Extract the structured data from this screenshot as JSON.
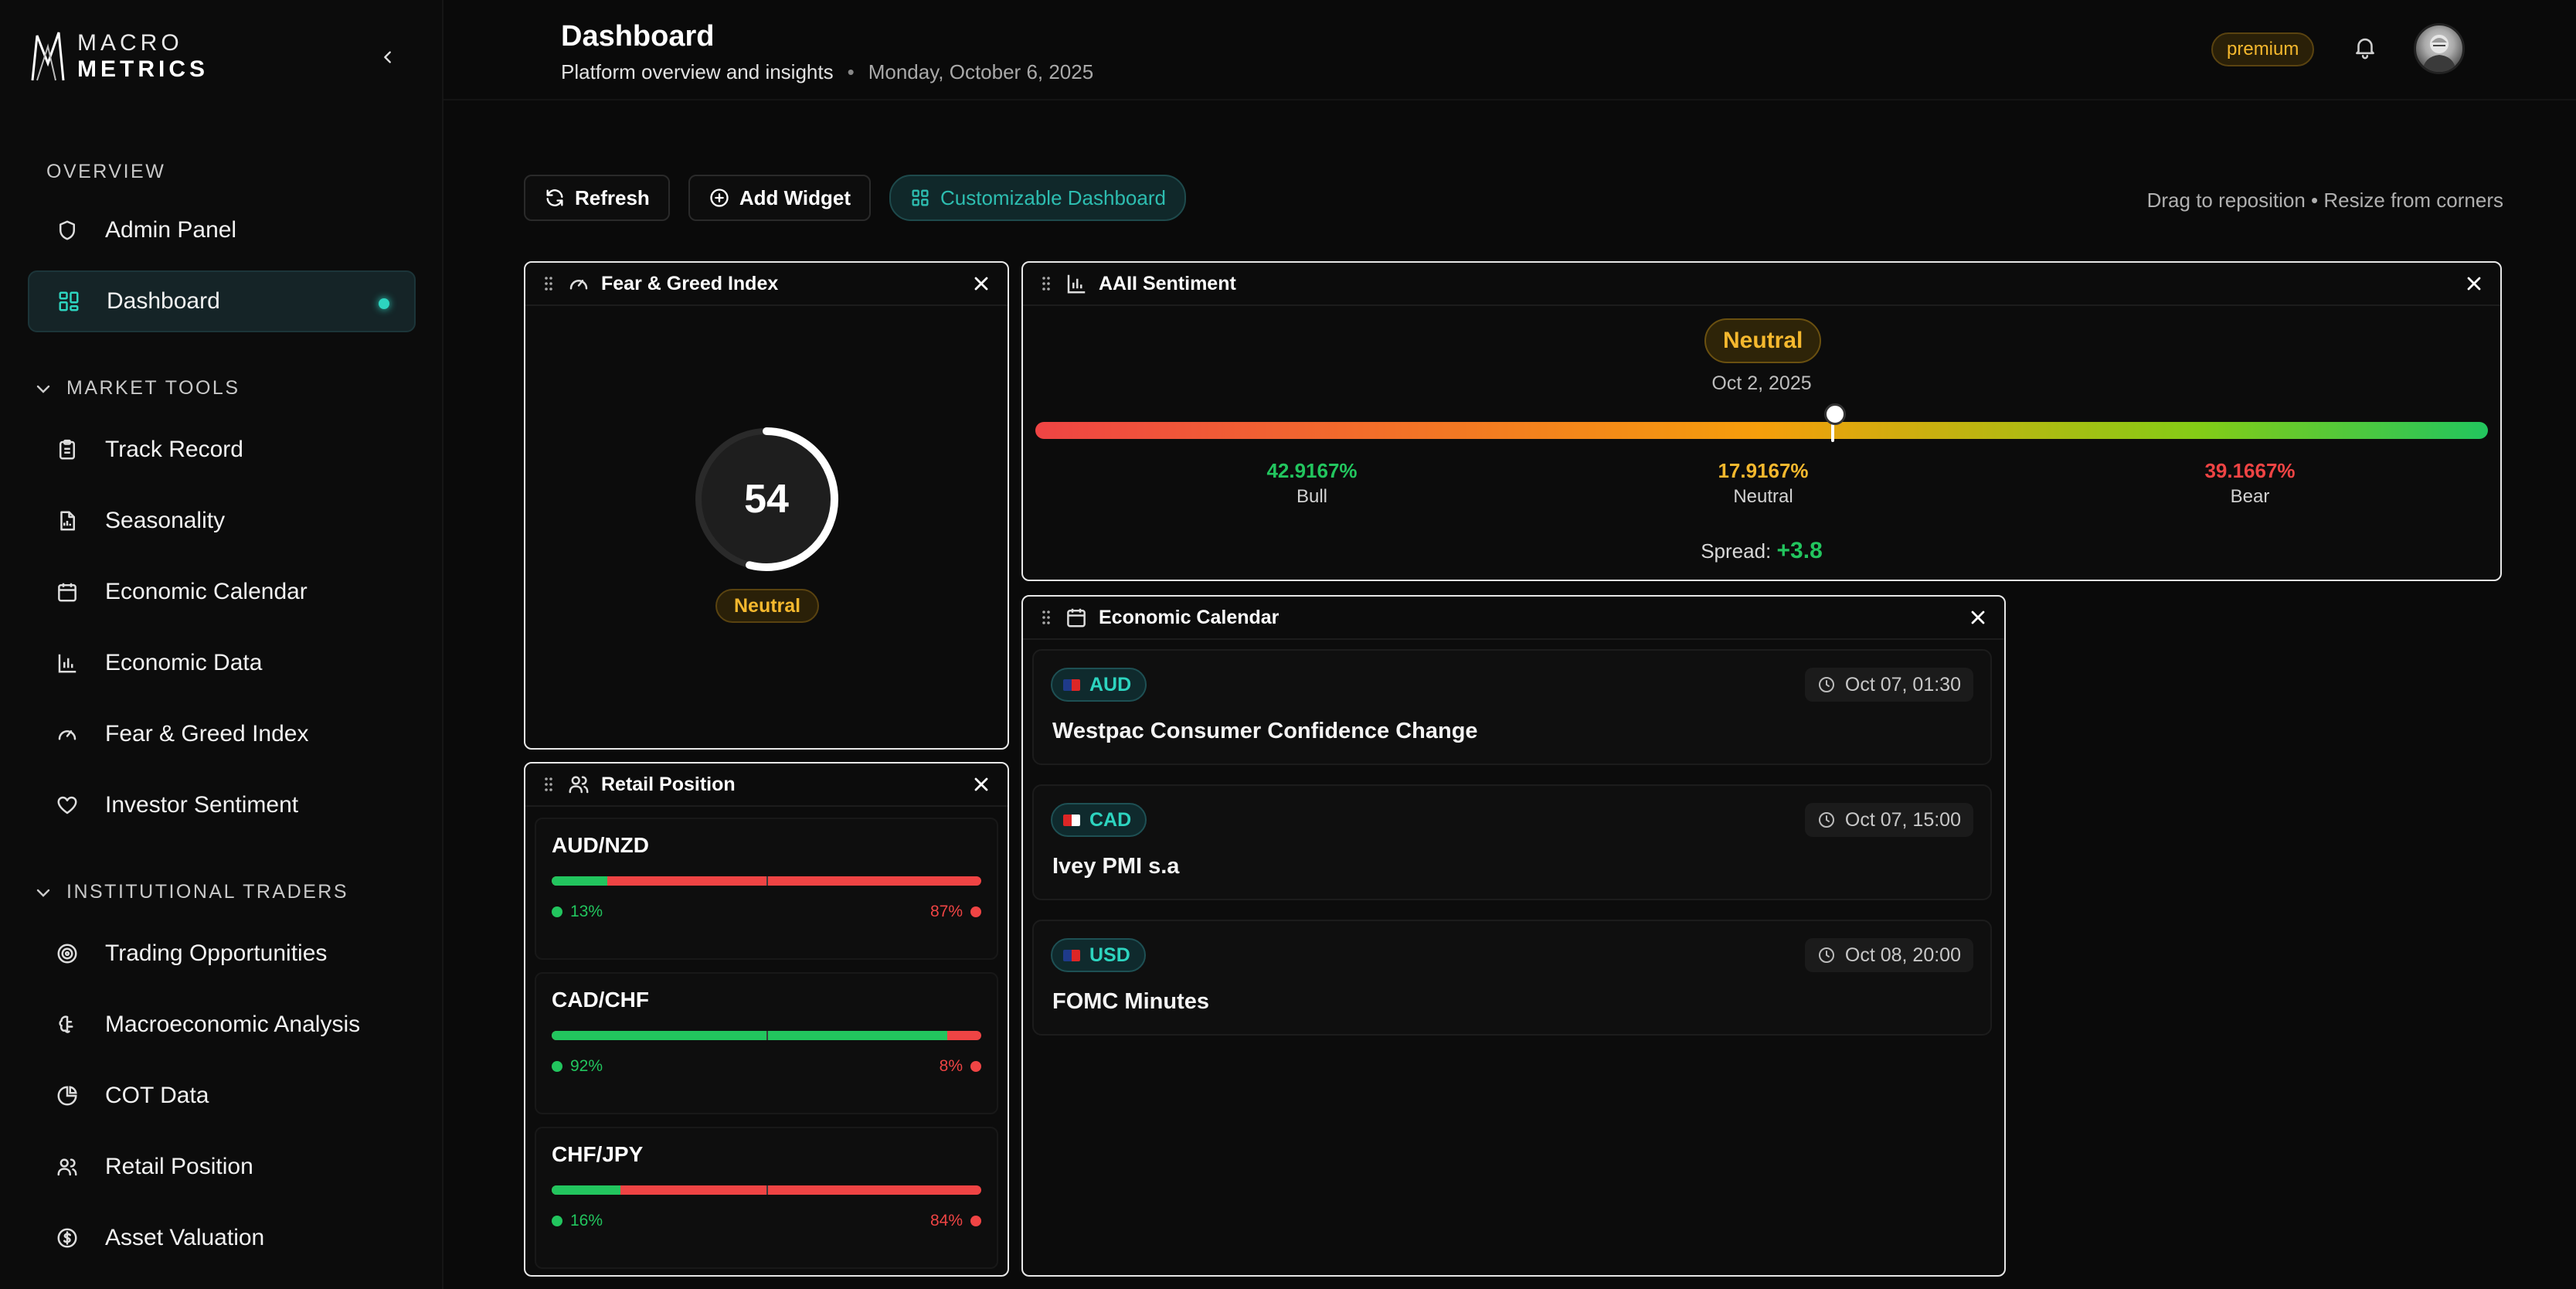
{
  "brand": {
    "line1": "MACRO",
    "line2": "METRICS"
  },
  "sidebar": {
    "overview_label": "OVERVIEW",
    "overview_items": [
      {
        "label": "Admin Panel",
        "icon": "shield-icon"
      },
      {
        "label": "Dashboard",
        "icon": "grid-icon",
        "active": true
      }
    ],
    "market_tools_label": "MARKET TOOLS",
    "market_tools_items": [
      {
        "label": "Track Record",
        "icon": "clipboard-icon"
      },
      {
        "label": "Seasonality",
        "icon": "file-chart-icon"
      },
      {
        "label": "Economic Calendar",
        "icon": "calendar-icon"
      },
      {
        "label": "Economic Data",
        "icon": "bar-chart-icon"
      },
      {
        "label": "Fear & Greed Index",
        "icon": "gauge-icon"
      },
      {
        "label": "Investor Sentiment",
        "icon": "heart-icon"
      }
    ],
    "institutional_label": "INSTITUTIONAL TRADERS",
    "institutional_items": [
      {
        "label": "Trading Opportunities",
        "icon": "target-icon"
      },
      {
        "label": "Macroeconomic Analysis",
        "icon": "brain-icon"
      },
      {
        "label": "COT Data",
        "icon": "pie-chart-icon"
      },
      {
        "label": "Retail Position",
        "icon": "users-icon"
      },
      {
        "label": "Asset Valuation",
        "icon": "dollar-circle-icon"
      }
    ]
  },
  "header": {
    "title": "Dashboard",
    "subtitle": "Platform overview and insights",
    "separator": "•",
    "date": "Monday, October 6, 2025",
    "plan_badge": "premium"
  },
  "toolbar": {
    "refresh": "Refresh",
    "add_widget": "Add Widget",
    "customizable": "Customizable Dashboard",
    "hint": "Drag to reposition • Resize from corners"
  },
  "fear_greed": {
    "title": "Fear & Greed Index",
    "value": "54",
    "value_number": 54,
    "label": "Neutral"
  },
  "aaii": {
    "title": "AAII Sentiment",
    "badge": "Neutral",
    "date": "Oct 2, 2025",
    "marker_position": 0.548,
    "bull": {
      "value": "42.9167%",
      "label": "Bull"
    },
    "neutral": {
      "value": "17.9167%",
      "label": "Neutral"
    },
    "bear": {
      "value": "39.1667%",
      "label": "Bear"
    },
    "spread_label": "Spread:",
    "spread_value": "+3.8"
  },
  "retail": {
    "title": "Retail Position",
    "pairs": [
      {
        "pair": "AUD/NZD",
        "long": "13%",
        "short": "87%",
        "long_fraction": 0.13
      },
      {
        "pair": "CAD/CHF",
        "long": "92%",
        "short": "8%",
        "long_fraction": 0.92
      },
      {
        "pair": "CHF/JPY",
        "long": "16%",
        "short": "84%",
        "long_fraction": 0.16
      }
    ]
  },
  "calendar": {
    "title": "Economic Calendar",
    "events": [
      {
        "currency": "AUD",
        "time": "Oct 07, 01:30",
        "title": "Westpac Consumer Confidence Change",
        "flag_colors": [
          "#1e3a8a",
          "#dc2626"
        ]
      },
      {
        "currency": "CAD",
        "time": "Oct 07, 15:00",
        "title": "Ivey PMI s.a",
        "flag_colors": [
          "#dc2626",
          "#ffffff"
        ]
      },
      {
        "currency": "USD",
        "time": "Oct 08, 20:00",
        "title": "FOMC Minutes",
        "flag_colors": [
          "#1e3a8a",
          "#dc2626"
        ]
      }
    ]
  },
  "colors": {
    "accent": "#2dd4bf",
    "bull": "#22c55e",
    "bear": "#ef4444",
    "neutral": "#f5b82e"
  }
}
